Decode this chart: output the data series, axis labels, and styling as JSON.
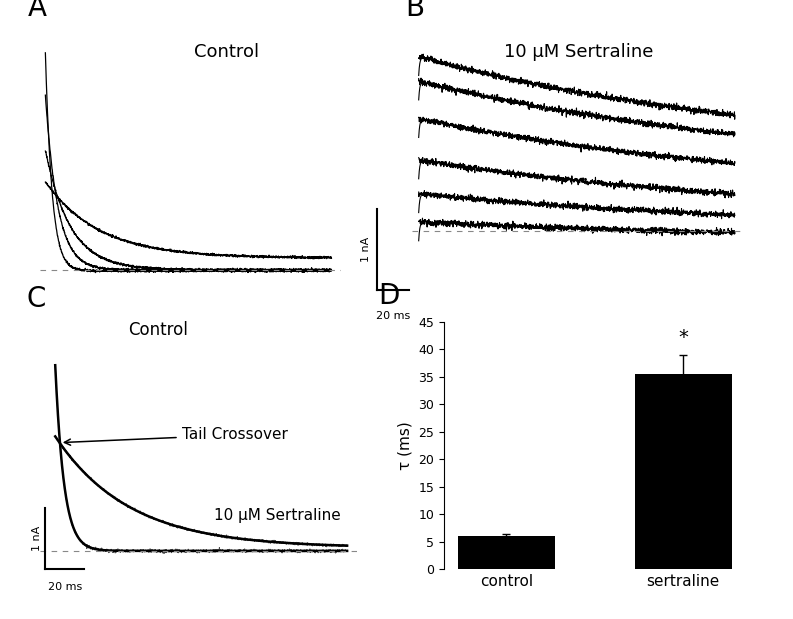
{
  "fig_width": 7.93,
  "fig_height": 6.19,
  "bg_color": "#ffffff",
  "panel_label_fontsize": 20,
  "label_A": "Control",
  "label_B": "10 μM Sertraline",
  "label_C_control": "Control",
  "label_C_sert": "10 μM Sertraline",
  "label_C_crossover": "Tail Crossover",
  "scalebar_current": "1 nA",
  "scalebar_time": "20 ms",
  "bar_categories": [
    "control",
    "sertraline"
  ],
  "bar_values": [
    6.0,
    35.5
  ],
  "bar_errors": [
    0.5,
    3.5
  ],
  "bar_colors": [
    "#000000",
    "#000000"
  ],
  "bar_ylabel": "τ (ms)",
  "bar_ylim": [
    0,
    45
  ],
  "bar_yticks": [
    0,
    5,
    10,
    15,
    20,
    25,
    30,
    35,
    40,
    45
  ],
  "significance_star": "*",
  "text_color": "#000000",
  "trace_color": "#000000",
  "dotted_line_color": "#888888"
}
